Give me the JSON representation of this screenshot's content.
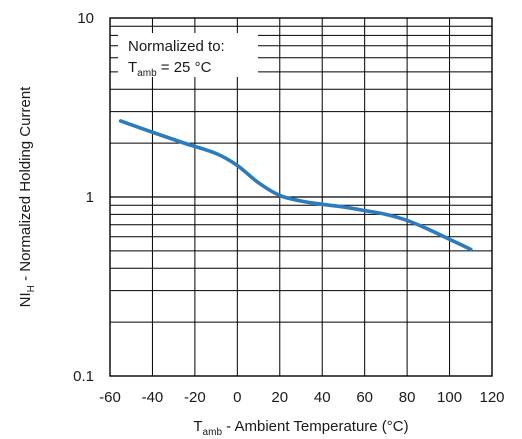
{
  "chart_data": {
    "type": "line",
    "title": "",
    "xlabel": {
      "main": "T",
      "sub": "amb",
      "rest": " - Ambient Temperature (°C)"
    },
    "ylabel": {
      "main": "NI",
      "sub": "H",
      "rest": " - Normalized Holding Current"
    },
    "xlim": [
      -60,
      120
    ],
    "ylim": [
      0.1,
      10
    ],
    "y_scale": "log",
    "grid": true,
    "x_ticks": [
      -60,
      -40,
      -20,
      0,
      20,
      40,
      60,
      80,
      100,
      120
    ],
    "x_tick_labels": [
      "-60",
      "-40",
      "-20",
      "0",
      "20",
      "40",
      "60",
      "80",
      "100",
      "120"
    ],
    "y_ticks": [
      0.1,
      1,
      10
    ],
    "y_tick_labels": [
      "0.1",
      "1",
      "10"
    ],
    "annotation": {
      "line1": "Normalized to:",
      "line2_main": "T",
      "line2_sub": "amb",
      "line2_rest": " = 25 °C"
    },
    "series": [
      {
        "color": "#2b7bbf",
        "x": [
          -55,
          -40,
          -25,
          -10,
          0,
          10,
          20,
          30,
          40,
          50,
          60,
          70,
          80,
          90,
          100,
          110
        ],
        "y": [
          2.66,
          2.3,
          2.0,
          1.75,
          1.5,
          1.2,
          1.02,
          0.95,
          0.91,
          0.88,
          0.84,
          0.8,
          0.74,
          0.66,
          0.58,
          0.51
        ]
      }
    ]
  }
}
